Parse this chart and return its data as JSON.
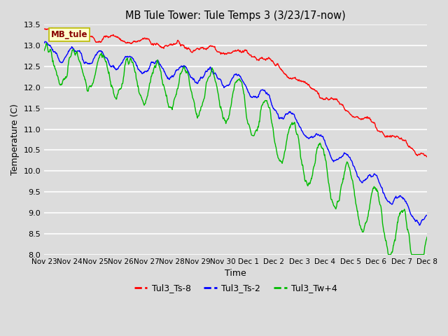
{
  "title": "MB Tule Tower: Tule Temps 3 (3/23/17-now)",
  "xlabel": "Time",
  "ylabel": "Temperature (C)",
  "ylim": [
    8.0,
    13.5
  ],
  "yticks": [
    8.0,
    8.5,
    9.0,
    9.5,
    10.0,
    10.5,
    11.0,
    11.5,
    12.0,
    12.5,
    13.0,
    13.5
  ],
  "bg_color": "#dcdcdc",
  "line_colors": [
    "#ff0000",
    "#0000ff",
    "#00bb00"
  ],
  "legend_labels": [
    "Tul3_Ts-8",
    "Tul3_Ts-2",
    "Tul3_Tw+4"
  ],
  "annotation_text": "MB_tule",
  "annotation_bg": "#ffffcc",
  "annotation_border": "#bbbb00",
  "x_tick_labels": [
    "Nov 23",
    "Nov 24",
    "Nov 25",
    "Nov 26",
    "Nov 27",
    "Nov 28",
    "Nov 29",
    "Nov 30",
    "Dec 1",
    "Dec 2",
    "Dec 3",
    "Dec 4",
    "Dec 5",
    "Dec 6",
    "Dec 7",
    "Dec 8"
  ],
  "n_points": 1000
}
